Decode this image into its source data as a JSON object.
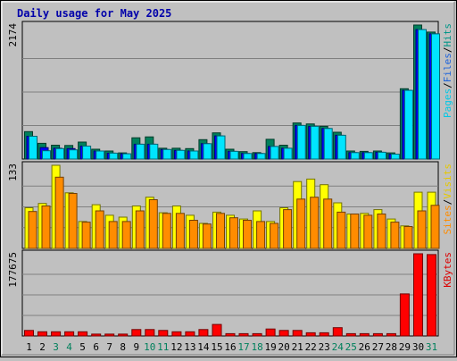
{
  "chart_data": {
    "type": "bar",
    "title": "Daily usage for May 2025",
    "categories": [
      "1",
      "2",
      "3",
      "4",
      "5",
      "6",
      "7",
      "8",
      "9",
      "10",
      "11",
      "12",
      "13",
      "14",
      "15",
      "16",
      "17",
      "18",
      "19",
      "20",
      "21",
      "22",
      "23",
      "24",
      "25",
      "26",
      "27",
      "28",
      "29",
      "30",
      "31"
    ],
    "weekend_days": [
      "3",
      "4",
      "10",
      "11",
      "17",
      "18",
      "24",
      "25",
      "31"
    ],
    "panels": [
      {
        "ymax": 2174,
        "ymax_label": "2174",
        "series": [
          {
            "name": "Hits",
            "color": "#00805c",
            "values": [
              445,
              255,
              225,
              220,
              275,
              160,
              130,
              100,
              345,
              360,
              175,
              175,
              170,
              315,
              425,
              160,
              120,
              105,
              320,
              225,
              585,
              570,
              530,
              435,
              130,
              125,
              130,
              100,
              1140,
              2174,
              2060
            ]
          },
          {
            "name": "Files",
            "color": "#0000ff",
            "values": [
              370,
              185,
              175,
              170,
              210,
              130,
              95,
              85,
              240,
              240,
              155,
              140,
              130,
              250,
              375,
              125,
              90,
              90,
              205,
              175,
              545,
              530,
              495,
              385,
              105,
              105,
              110,
              80,
              1115,
              2100,
              2030
            ]
          },
          {
            "name": "Pages",
            "color": "#00e5ff",
            "values": [
              370,
              135,
              170,
              150,
              210,
              130,
              95,
              85,
              240,
              240,
              155,
              140,
              130,
              250,
              375,
              125,
              90,
              90,
              205,
              175,
              545,
              530,
              495,
              385,
              105,
              105,
              110,
              80,
              1115,
              2100,
              2030
            ]
          }
        ],
        "label_parts": [
          "Pages",
          "/",
          "Files",
          "/",
          "Hits"
        ],
        "label_colors": [
          "#00c8e6",
          "#000000",
          "#1e64dc",
          "#000000",
          "#009688"
        ]
      },
      {
        "ymax": 133,
        "ymax_label": "133",
        "series": [
          {
            "name": "Visits",
            "color": "#ffff00",
            "values": [
              65,
              72,
              133,
              89,
              43,
              70,
              53,
              50,
              68,
              82,
              57,
              68,
              53,
              40,
              58,
              53,
              47,
              60,
              43,
              65,
              107,
              111,
              102,
              73,
              55,
              56,
              62,
              47,
              36,
              90,
              90
            ]
          },
          {
            "name": "Sites",
            "color": "#ff8c00",
            "values": [
              59,
              68,
              114,
              88,
              42,
              60,
              43,
              43,
              60,
              78,
              56,
              56,
              45,
              39,
              56,
              49,
              45,
              43,
              40,
              62,
              79,
              82,
              79,
              58,
              55,
              53,
              55,
              42,
              35,
              60,
              69
            ]
          }
        ],
        "label_parts": [
          "Sites",
          "/",
          "Visits"
        ],
        "label_colors": [
          "#ff8c00",
          "#000000",
          "#e6c800"
        ]
      },
      {
        "ymax": 177675,
        "ymax_label": "177675",
        "series": [
          {
            "name": "KBytes",
            "color": "#ff0000",
            "values": [
              12000,
              9000,
              9000,
              9000,
              9000,
              4000,
              4000,
              4000,
              14000,
              14000,
              12000,
              9000,
              9000,
              14000,
              25000,
              5000,
              5000,
              5000,
              15000,
              12000,
              12000,
              7000,
              7000,
              18000,
              5000,
              5000,
              5000,
              5000,
              91000,
              177675,
              176000
            ]
          }
        ],
        "label_parts": [
          "KBytes"
        ],
        "label_colors": [
          "#dc0000"
        ]
      }
    ]
  }
}
